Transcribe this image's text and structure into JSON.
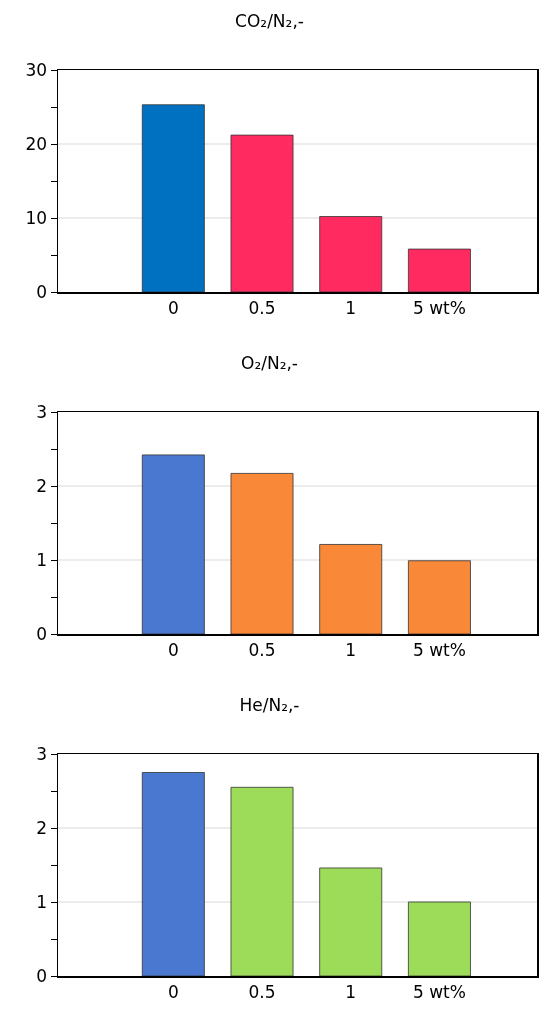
{
  "chart_data": [
    {
      "type": "bar",
      "title": "CO₂/N₂,-",
      "categories": [
        "0",
        "0.5",
        "1",
        "5 wt%"
      ],
      "values": [
        25.3,
        21.2,
        10.2,
        5.8
      ],
      "colors": [
        "#0070c0",
        "#ff2a5f",
        "#ff2a5f",
        "#ff2a5f"
      ],
      "ylim": [
        0,
        30
      ],
      "yticks": [
        0,
        {
          "value": 5,
          "label": null
        },
        10,
        {
          "value": 15,
          "label": null
        },
        20,
        {
          "value": 25,
          "label": null
        },
        30
      ],
      "grid": "y"
    },
    {
      "type": "bar",
      "title": "O₂/N₂,-",
      "categories": [
        "0",
        "0.5",
        "1",
        "5 wt%"
      ],
      "values": [
        2.42,
        2.17,
        1.21,
        0.99
      ],
      "colors": [
        "#4a78d0",
        "#f98838",
        "#f98838",
        "#f98838"
      ],
      "ylim": [
        0,
        3
      ],
      "yticks": [
        0,
        {
          "value": 0.5,
          "label": null
        },
        1,
        {
          "value": 1.5,
          "label": null
        },
        2,
        {
          "value": 2.5,
          "label": null
        },
        3
      ],
      "grid": "y"
    },
    {
      "type": "bar",
      "title": "He/N₂,-",
      "categories": [
        "0",
        "0.5",
        "1",
        "5 wt%"
      ],
      "values": [
        2.75,
        2.55,
        1.46,
        1.0
      ],
      "colors": [
        "#4a78d0",
        "#9ddc59",
        "#9ddc59",
        "#9ddc59"
      ],
      "ylim": [
        0,
        3
      ],
      "yticks": [
        0,
        {
          "value": 0.5,
          "label": null
        },
        1,
        {
          "value": 1.5,
          "label": null
        },
        2,
        {
          "value": 2.5,
          "label": null
        },
        3
      ],
      "grid": "y"
    }
  ]
}
